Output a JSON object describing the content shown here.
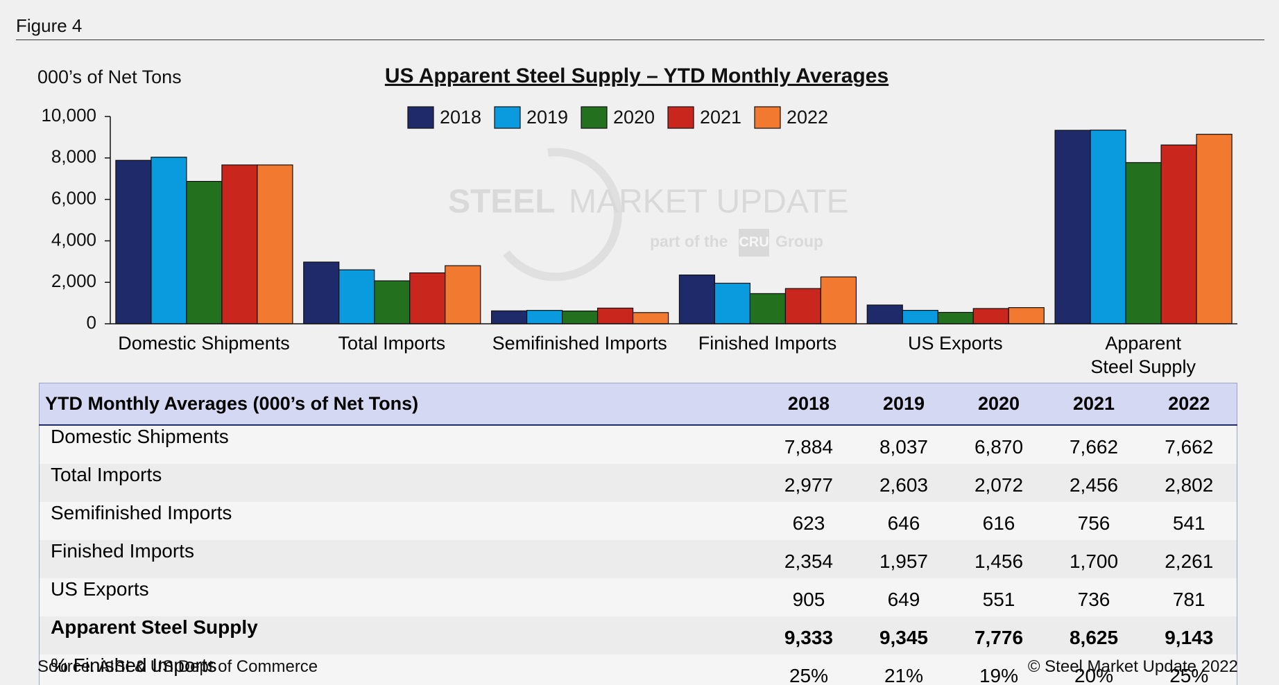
{
  "figure_label": "Figure 4",
  "chart_data": {
    "type": "bar",
    "title": "US Apparent Steel Supply – YTD Monthly Averages",
    "y_label": "000’s of Net Tons",
    "categories": [
      "Domestic Shipments",
      "Total Imports",
      "Semifinished Imports",
      "Finished Imports",
      "US Exports",
      "Apparent\nSteel Supply"
    ],
    "series": [
      {
        "name": "2018",
        "color": "#1f2a6b",
        "values": [
          7884,
          2977,
          623,
          2354,
          905,
          9333
        ]
      },
      {
        "name": "2019",
        "color": "#0a9ade",
        "values": [
          8037,
          2603,
          646,
          1957,
          649,
          9345
        ]
      },
      {
        "name": "2020",
        "color": "#23701f",
        "values": [
          6870,
          2072,
          616,
          1456,
          551,
          7776
        ]
      },
      {
        "name": "2021",
        "color": "#c9261d",
        "values": [
          7662,
          2456,
          756,
          1700,
          736,
          8625
        ]
      },
      {
        "name": "2022",
        "color": "#f27a30",
        "values": [
          7662,
          2802,
          541,
          2261,
          781,
          9143
        ]
      }
    ],
    "ylim": [
      0,
      10000
    ],
    "yticks": [
      0,
      {
        "value": 2000,
        "label": "2,000"
      },
      {
        "value": 4000,
        "label": "4,000"
      },
      {
        "value": 6000,
        "label": "6,000"
      },
      {
        "value": 8000,
        "label": "8,000"
      },
      {
        "value": 10000,
        "label": "10,000"
      }
    ],
    "legend": "top"
  },
  "watermark": {
    "brand_bold": "STEEL",
    "brand": "MARKET UPDATE",
    "tag_pre": "part of the",
    "tag_logo": "CRU",
    "tag_post": "Group"
  },
  "table": {
    "title": "YTD Monthly Averages (000’s of Net Tons)",
    "rows": [
      {
        "label": "Domestic Shipments",
        "cells": [
          "7,884",
          "8,037",
          "6,870",
          "7,662",
          "7,662"
        ]
      },
      {
        "label": "Total Imports",
        "cells": [
          "2,977",
          "2,603",
          "2,072",
          "2,456",
          "2,802"
        ]
      },
      {
        "label": "Semifinished Imports",
        "cells": [
          "623",
          "646",
          "616",
          "756",
          "541"
        ]
      },
      {
        "label": "Finished Imports",
        "cells": [
          "2,354",
          "1,957",
          "1,456",
          "1,700",
          "2,261"
        ]
      },
      {
        "label": "US Exports",
        "cells": [
          "905",
          "649",
          "551",
          "736",
          "781"
        ]
      },
      {
        "label": "Apparent Steel Supply",
        "cells": [
          "9,333",
          "9,345",
          "7,776",
          "8,625",
          "9,143"
        ]
      },
      {
        "label": "% Finished Imports",
        "cells": [
          "25%",
          "21%",
          "19%",
          "20%",
          "25%"
        ]
      }
    ]
  },
  "source": "Source:  AISI & US Dept of Commerce",
  "copyright": "© Steel Market Update 2022"
}
